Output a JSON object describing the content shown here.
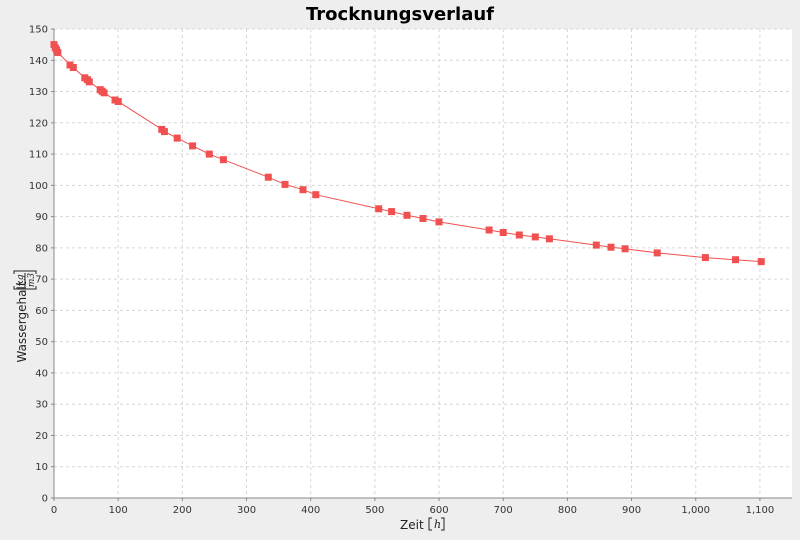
{
  "colors": {
    "background": "#eeeeee",
    "plot": "#ffffff",
    "series": "#f05050",
    "grid": "#d6d6d6"
  },
  "chart_data": {
    "type": "line",
    "title": "Trocknungsverlauf",
    "xlabel": "Zeit",
    "xunit": "h",
    "ylabel": "Wassergehalt",
    "yunit_num": "kg",
    "yunit_den": "m3",
    "xlim": [
      0,
      1150
    ],
    "ylim": [
      0,
      150
    ],
    "x_ticks": [
      0,
      100,
      200,
      300,
      400,
      500,
      600,
      700,
      800,
      900,
      1000,
      1100
    ],
    "x_tick_labels": [
      "0",
      "100",
      "200",
      "300",
      "400",
      "500",
      "600",
      "700",
      "800",
      "900",
      "1,000",
      "1,100"
    ],
    "y_ticks": [
      0,
      10,
      20,
      30,
      40,
      50,
      60,
      70,
      80,
      90,
      100,
      110,
      120,
      130,
      140,
      150
    ],
    "y_tick_labels": [
      "0",
      "10",
      "20",
      "30",
      "40",
      "50",
      "60",
      "70",
      "80",
      "90",
      "100",
      "110",
      "120",
      "130",
      "140",
      "150"
    ],
    "grid": true,
    "series": [
      {
        "marker": "square",
        "x": [
          0,
          2,
          4,
          6,
          25,
          30,
          48,
          52,
          55,
          72,
          75,
          78,
          95,
          100,
          168,
          172,
          192,
          216,
          242,
          264,
          334,
          360,
          388,
          408,
          506,
          526,
          550,
          575,
          600,
          678,
          700,
          725,
          750,
          772,
          845,
          868,
          890,
          940,
          1015,
          1062,
          1102
        ],
        "y": [
          145,
          144,
          143.3,
          142.5,
          138.5,
          137.7,
          134.4,
          133.8,
          133.1,
          130.6,
          130.1,
          129.6,
          127.3,
          126.8,
          117.9,
          117.2,
          115.1,
          112.6,
          110.0,
          108.2,
          102.6,
          100.3,
          98.6,
          97.0,
          92.5,
          91.6,
          90.4,
          89.4,
          88.3,
          85.7,
          84.9,
          84.1,
          83.5,
          82.9,
          80.9,
          80.2,
          79.7,
          78.4,
          76.9,
          76.2,
          75.6
        ]
      }
    ]
  }
}
